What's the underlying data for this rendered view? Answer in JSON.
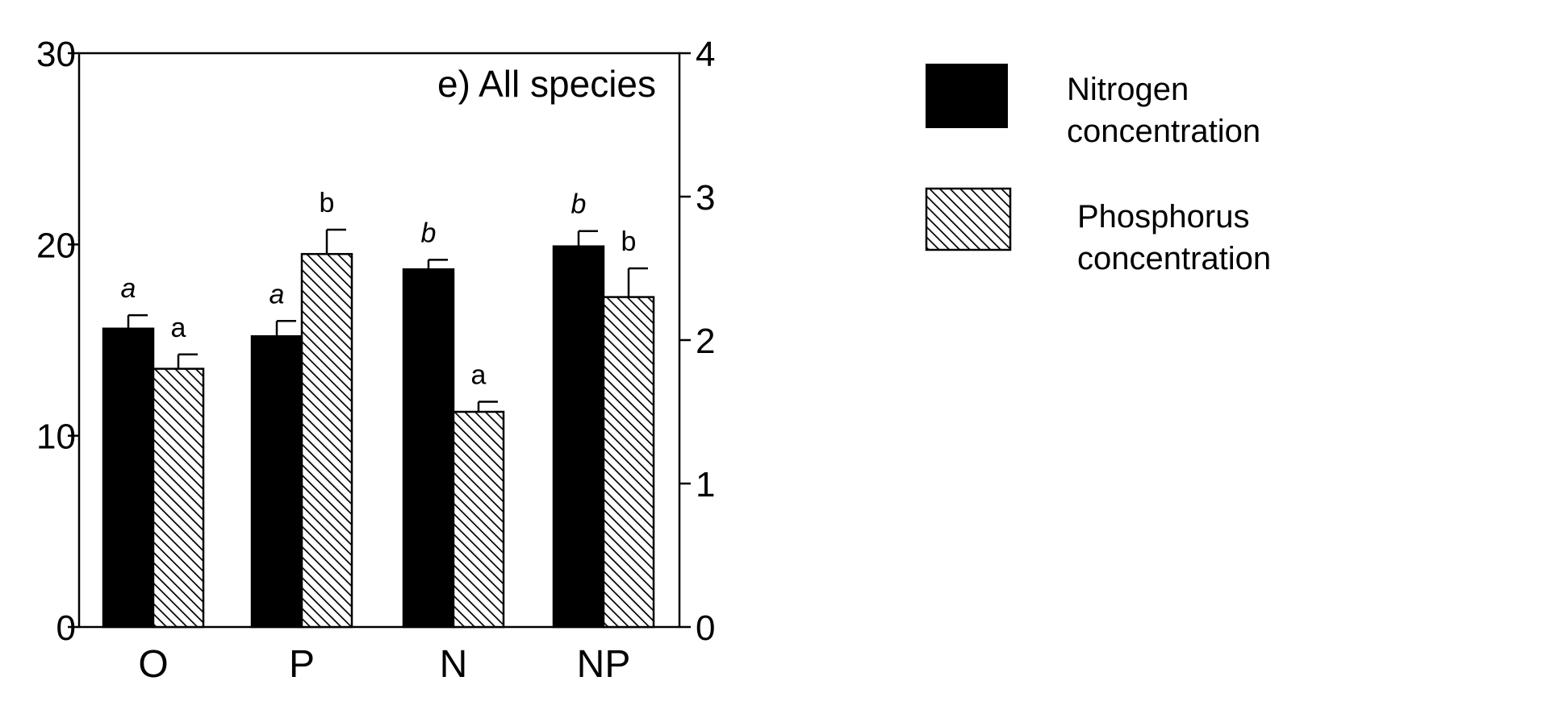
{
  "chart_data": {
    "type": "bar",
    "panel_label": "e) All species",
    "categories": [
      "O",
      "P",
      "N",
      "NP"
    ],
    "left_axis": {
      "ylim": [
        0,
        30
      ],
      "ticks": [
        "0",
        "10",
        "20",
        "30"
      ]
    },
    "right_axis": {
      "ylim": [
        0,
        4
      ],
      "ticks": [
        "0",
        "1",
        "2",
        "3",
        "4"
      ]
    },
    "series": [
      {
        "name": "Nitrogen concentration",
        "legend_lines": [
          "Nitrogen",
          "concentration"
        ],
        "axis": "left",
        "fill": "solid",
        "color": "#000000",
        "values": [
          15.6,
          15.2,
          18.7,
          19.9
        ],
        "errors": [
          0.7,
          0.8,
          0.5,
          0.8
        ],
        "letters": [
          "a",
          "a",
          "b",
          "b"
        ],
        "letter_style": "italic"
      },
      {
        "name": "Phosphorus concentration",
        "legend_lines": [
          "Phosphorus",
          "concentration"
        ],
        "axis": "right",
        "fill": "hatched",
        "color": "#000000",
        "values": [
          1.8,
          2.6,
          1.5,
          2.3
        ],
        "errors": [
          0.1,
          0.17,
          0.07,
          0.2
        ],
        "letters": [
          "a",
          "b",
          "a",
          "b"
        ],
        "letter_style": "normal"
      }
    ],
    "grid": false,
    "legend_position": "right"
  }
}
